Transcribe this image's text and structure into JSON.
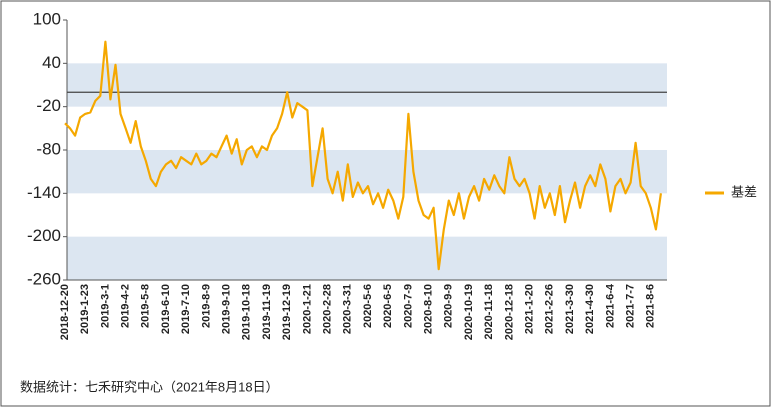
{
  "chart_data": {
    "type": "line",
    "categories": [
      "2018-12-20",
      null,
      null,
      null,
      "2019-1-23",
      null,
      null,
      null,
      "2019-3-1",
      null,
      null,
      null,
      "2019-4-2",
      null,
      null,
      null,
      "2019-5-8",
      null,
      null,
      null,
      "2019-6-10",
      null,
      null,
      null,
      "2019-7-10",
      null,
      null,
      null,
      "2019-8-9",
      null,
      null,
      null,
      "2019-9-10",
      null,
      null,
      null,
      "2019-10-18",
      null,
      null,
      null,
      "2019-11-19",
      null,
      null,
      null,
      "2019-12-19",
      null,
      null,
      null,
      "2020-1-21",
      null,
      null,
      null,
      "2020-2-28",
      null,
      null,
      null,
      "2020-3-31",
      null,
      null,
      null,
      "2020-5-6",
      null,
      null,
      null,
      "2020-6-5",
      null,
      null,
      null,
      "2020-7-9",
      null,
      null,
      null,
      "2020-8-10",
      null,
      null,
      null,
      "2020-9-9",
      null,
      null,
      null,
      "2020-10-19",
      null,
      null,
      null,
      "2020-11-18",
      null,
      null,
      null,
      "2020-12-18",
      null,
      null,
      null,
      "2021-1-20",
      null,
      null,
      null,
      "2021-2-26",
      null,
      null,
      null,
      "2021-3-30",
      null,
      null,
      null,
      "2021-4-30",
      null,
      null,
      null,
      "2021-6-4",
      null,
      null,
      null,
      "2021-7-7",
      null,
      null,
      null,
      "2021-8-6",
      null,
      null
    ],
    "series": [
      {
        "name": "基差",
        "color": "#f5a800",
        "values": [
          -43,
          -50,
          -60,
          -35,
          -30,
          -28,
          -12,
          -5,
          70,
          -10,
          38,
          -30,
          -50,
          -70,
          -40,
          -75,
          -95,
          -120,
          -130,
          -110,
          -100,
          -95,
          -105,
          -90,
          -95,
          -100,
          -85,
          -100,
          -95,
          -85,
          -90,
          -75,
          -60,
          -85,
          -65,
          -100,
          -80,
          -75,
          -90,
          -75,
          -80,
          -60,
          -50,
          -30,
          0,
          -35,
          -15,
          -20,
          -25,
          -130,
          -90,
          -50,
          -120,
          -140,
          -110,
          -150,
          -100,
          -145,
          -125,
          -140,
          -130,
          -155,
          -140,
          -160,
          -135,
          -150,
          -175,
          -145,
          -30,
          -110,
          -150,
          -170,
          -175,
          -160,
          -245,
          -190,
          -150,
          -170,
          -140,
          -175,
          -145,
          -130,
          -150,
          -120,
          -135,
          -115,
          -130,
          -140,
          -90,
          -120,
          -130,
          -120,
          -140,
          -175,
          -130,
          -160,
          -140,
          -170,
          -130,
          -180,
          -150,
          -125,
          -160,
          -130,
          -115,
          -130,
          -100,
          -120,
          -165,
          -130,
          -120,
          -140,
          -125,
          -70,
          -130,
          -140,
          -160,
          -190,
          -140
        ]
      }
    ],
    "ylim": [
      -260,
      100
    ],
    "yticks": [
      100,
      40,
      -20,
      -80,
      -140,
      -200,
      -260
    ],
    "hline": 0,
    "legend": "right",
    "footnote": "数据统计：七禾研究中心（2021年8月18日）"
  }
}
